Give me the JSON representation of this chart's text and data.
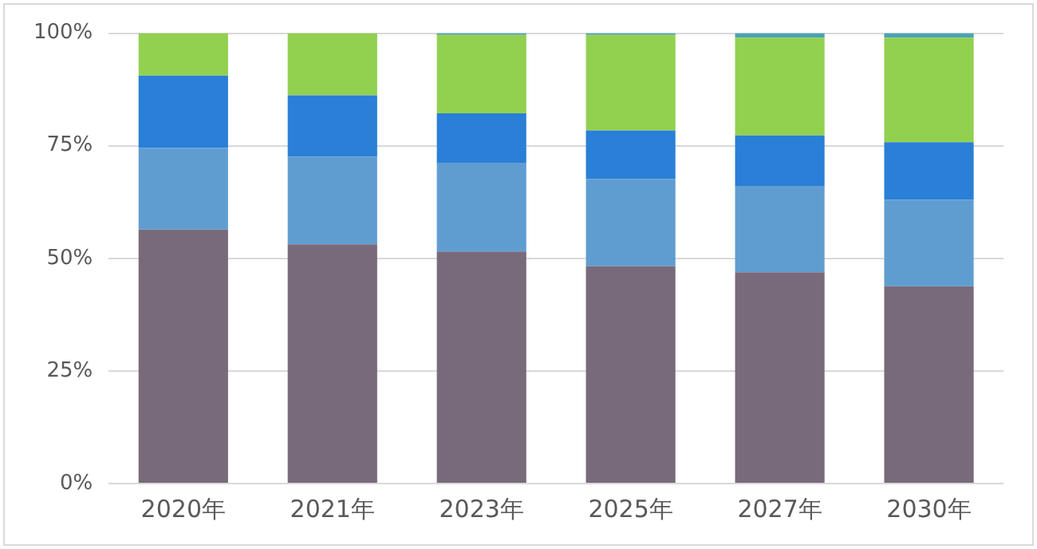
{
  "chart_data": {
    "type": "bar",
    "stacked": true,
    "categories": [
      "2020年",
      "2021年",
      "2023年",
      "2025年",
      "2027年",
      "2030年"
    ],
    "series": [
      {
        "color": "#786a7a",
        "values": [
          56.4,
          53.1,
          51.5,
          48.3,
          46.9,
          43.8
        ]
      },
      {
        "color": "#5f9dd1",
        "values": [
          18.1,
          19.5,
          19.6,
          19.3,
          19.2,
          19.2
        ]
      },
      {
        "color": "#2a7fd6",
        "values": [
          16.1,
          13.6,
          11.1,
          10.8,
          11.2,
          12.8
        ]
      },
      {
        "color": "#92d050",
        "values": [
          9.4,
          13.8,
          17.4,
          21.2,
          21.7,
          23.2
        ]
      },
      {
        "color": "#4ba3b5",
        "values": [
          0,
          0,
          0.4,
          0.4,
          1.0,
          1.0
        ]
      }
    ],
    "ylim": [
      0,
      100
    ],
    "yticks": [
      {
        "value": 0,
        "label": "0%"
      },
      {
        "value": 25,
        "label": "25%"
      },
      {
        "value": 50,
        "label": "50%"
      },
      {
        "value": 75,
        "label": "75%"
      },
      {
        "value": 100,
        "label": "100%"
      }
    ],
    "grid": "y",
    "legend": false
  }
}
